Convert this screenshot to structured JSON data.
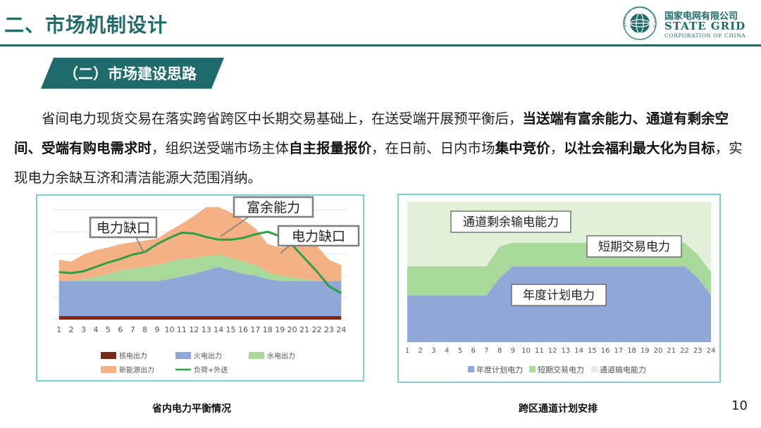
{
  "header": {
    "title": "二、市场机制设计",
    "logo_cn": "国家电网有限公司",
    "logo_en": "STATE GRID",
    "logo_corp": "CORPORATION OF CHINA",
    "logo_ring": "国家电网 STATE GRID CORPORATION OF CHINA"
  },
  "section": {
    "title": "（二）市场建设思路"
  },
  "paragraph": {
    "p1": "省间电力现货交易在落实跨省跨区中长期交易基础上，在送受端开展预平衡后，",
    "p2": "当送端有富余能力、通道有剩余空间、受端有购电需求时",
    "p3": "，组织送受端市场主体",
    "p4": "自主报量报价",
    "p5": "，在日前、日内市场",
    "p6": "集中竞价",
    "p7": "，",
    "p8": "以社会福利最大化为目标",
    "p9": "，实现电力余缺互济和清洁能源大范围消纳。"
  },
  "colors": {
    "accent": "#1f6b6b",
    "nuclear": "#7a2a1a",
    "thermal": "#8fa8d8",
    "hydro": "#a8d89a",
    "renewable": "#f4b183",
    "load": "#2ea043",
    "channel": "#e2f0d9"
  },
  "chart_data": [
    {
      "type": "area",
      "x": [
        1,
        2,
        3,
        4,
        5,
        6,
        7,
        8,
        9,
        10,
        11,
        12,
        13,
        14,
        15,
        16,
        17,
        18,
        19,
        20,
        21,
        22,
        23,
        24
      ],
      "series": [
        {
          "name": "核电出力",
          "values": [
            4,
            4,
            4,
            4,
            4,
            4,
            4,
            4,
            4,
            4,
            4,
            4,
            4,
            4,
            4,
            4,
            4,
            4,
            4,
            4,
            4,
            4,
            4,
            4
          ]
        },
        {
          "name": "火电出力",
          "values": [
            40,
            40,
            40,
            40,
            40,
            40,
            40,
            40,
            40,
            42,
            45,
            48,
            52,
            56,
            52,
            48,
            46,
            42,
            40,
            40,
            40,
            40,
            40,
            40
          ]
        },
        {
          "name": "水电出力",
          "values": [
            0,
            0,
            2,
            5,
            8,
            12,
            14,
            16,
            18,
            20,
            20,
            18,
            16,
            14,
            14,
            14,
            12,
            8,
            6,
            4,
            2,
            0,
            0,
            0
          ]
        },
        {
          "name": "新能源出力",
          "values": [
            24,
            22,
            28,
            30,
            30,
            30,
            30,
            30,
            30,
            35,
            40,
            48,
            56,
            54,
            52,
            48,
            42,
            32,
            32,
            36,
            38,
            40,
            24,
            18
          ]
        },
        {
          "name": "负荷+外送",
          "values": [
            54,
            53,
            55,
            60,
            65,
            69,
            74,
            77,
            86,
            93,
            99,
            98,
            94,
            91,
            91,
            93,
            97,
            100,
            95,
            85,
            70,
            55,
            38,
            30
          ]
        }
      ],
      "annotations": [
        "电力缺口",
        "富余能力",
        "电力缺口"
      ]
    },
    {
      "type": "area",
      "x": [
        1,
        2,
        3,
        4,
        5,
        6,
        7,
        8,
        9,
        10,
        11,
        12,
        13,
        14,
        15,
        16,
        17,
        18,
        19,
        20,
        21,
        22,
        23,
        24
      ],
      "series": [
        {
          "name": "年度计划电力",
          "values": [
            40,
            40,
            40,
            40,
            40,
            40,
            40,
            55,
            65,
            65,
            65,
            65,
            65,
            65,
            65,
            65,
            65,
            65,
            65,
            65,
            65,
            65,
            55,
            40
          ]
        },
        {
          "name": "短期交易电力",
          "values": [
            25,
            25,
            25,
            25,
            25,
            25,
            25,
            27,
            20,
            20,
            20,
            20,
            20,
            20,
            20,
            20,
            20,
            20,
            20,
            20,
            20,
            20,
            20,
            20
          ]
        },
        {
          "name": "通道输电能力",
          "values": [
            55,
            55,
            55,
            55,
            55,
            55,
            55,
            38,
            35,
            35,
            35,
            35,
            35,
            35,
            35,
            35,
            35,
            35,
            35,
            35,
            35,
            35,
            45,
            60
          ]
        }
      ],
      "annotations": [
        "通道剩余输电能力",
        "短期交易电力",
        "年度计划电力"
      ]
    }
  ],
  "captions": {
    "left": "省内电力平衡情况",
    "right": "跨区通道计划安排"
  },
  "page_number": "10"
}
